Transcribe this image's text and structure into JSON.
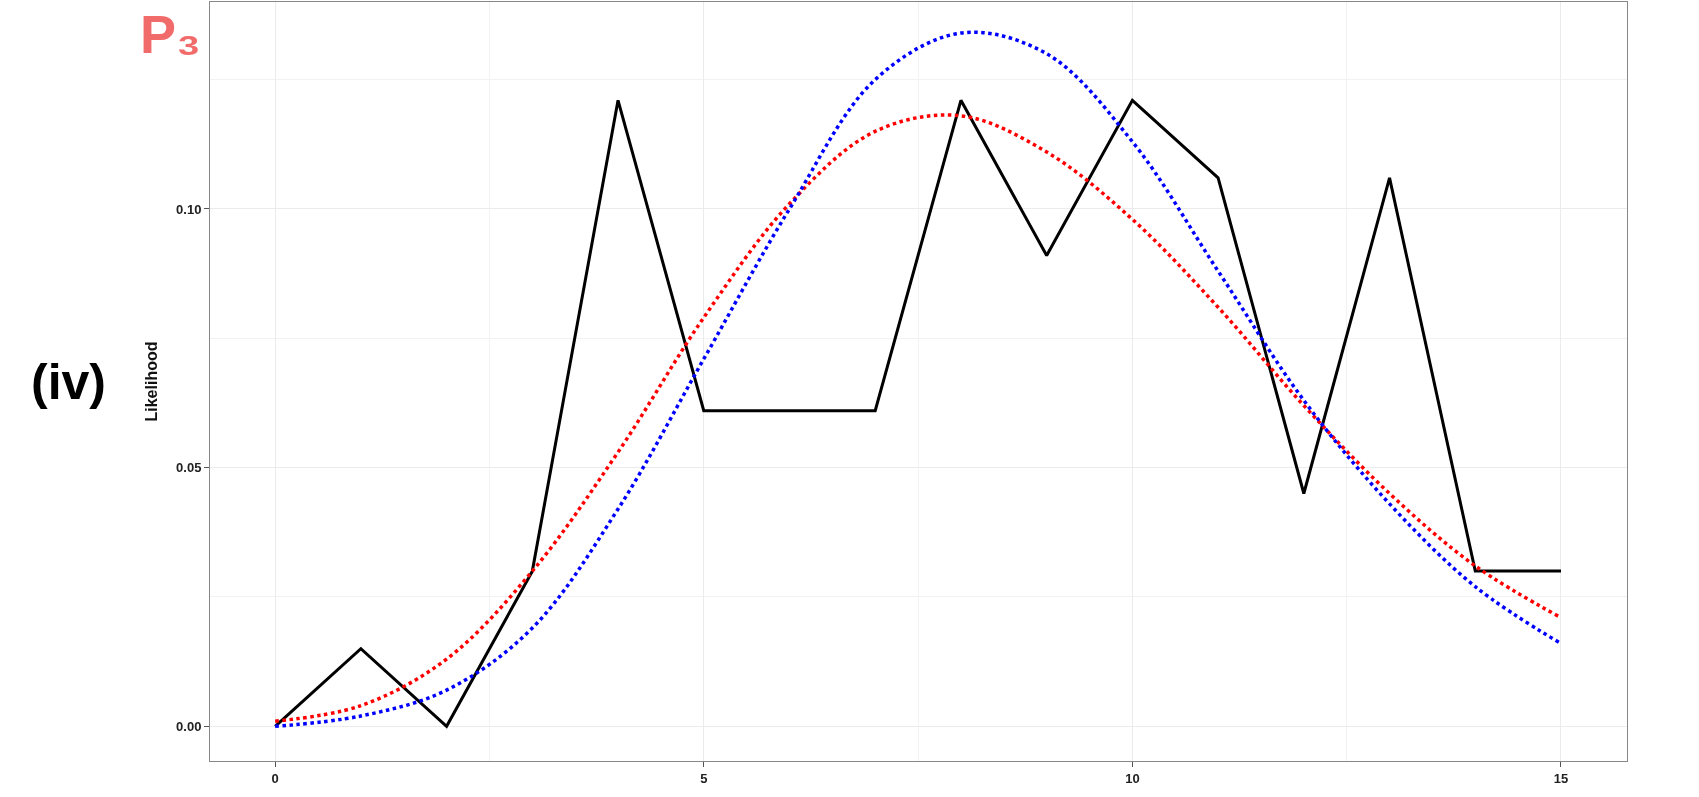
{
  "chart_data": {
    "type": "line",
    "ylabel": "Likelihood",
    "x": [
      0,
      1,
      2,
      3,
      4,
      5,
      6,
      7,
      8,
      9,
      10,
      11,
      12,
      13,
      14,
      15
    ],
    "series": [
      {
        "color": "#000000",
        "line_style": "solid",
        "values": [
          0,
          0.015,
          0,
          0.03,
          0.121,
          0.061,
          0.061,
          0.061,
          0.121,
          0.091,
          0.121,
          0.106,
          0.045,
          0.106,
          0.03,
          0.03
        ]
      },
      {
        "color": "#ff0000",
        "line_style": "dotted",
        "values": [
          0.001,
          0.004,
          0.013,
          0.03,
          0.053,
          0.079,
          0.101,
          0.115,
          0.118,
          0.111,
          0.098,
          0.081,
          0.062,
          0.045,
          0.031,
          0.021
        ]
      },
      {
        "color": "#0000ff",
        "line_style": "dotted",
        "values": [
          0,
          0.002,
          0.007,
          0.019,
          0.042,
          0.071,
          0.1,
          0.125,
          0.134,
          0.13,
          0.113,
          0.088,
          0.063,
          0.043,
          0.027,
          0.016
        ]
      }
    ],
    "xlim": [
      -0.76,
      15.77
    ],
    "ylim": [
      -0.0067,
      0.14
    ],
    "xticks": [
      0,
      {
        "value": 2.5,
        "label": null
      },
      5,
      {
        "value": 7.5,
        "label": null
      },
      10,
      {
        "value": 12.5,
        "label": null
      },
      15
    ],
    "yticks": [
      {
        "value": 0,
        "label": "0.00"
      },
      {
        "value": 0.025,
        "label": null
      },
      0.05,
      {
        "value": 0.075,
        "label": null
      },
      {
        "value": 0.1,
        "label": "0.10"
      },
      {
        "value": 0.125,
        "label": null
      }
    ],
    "grid": true,
    "annotations": [
      "(iv)",
      "P₃"
    ]
  }
}
